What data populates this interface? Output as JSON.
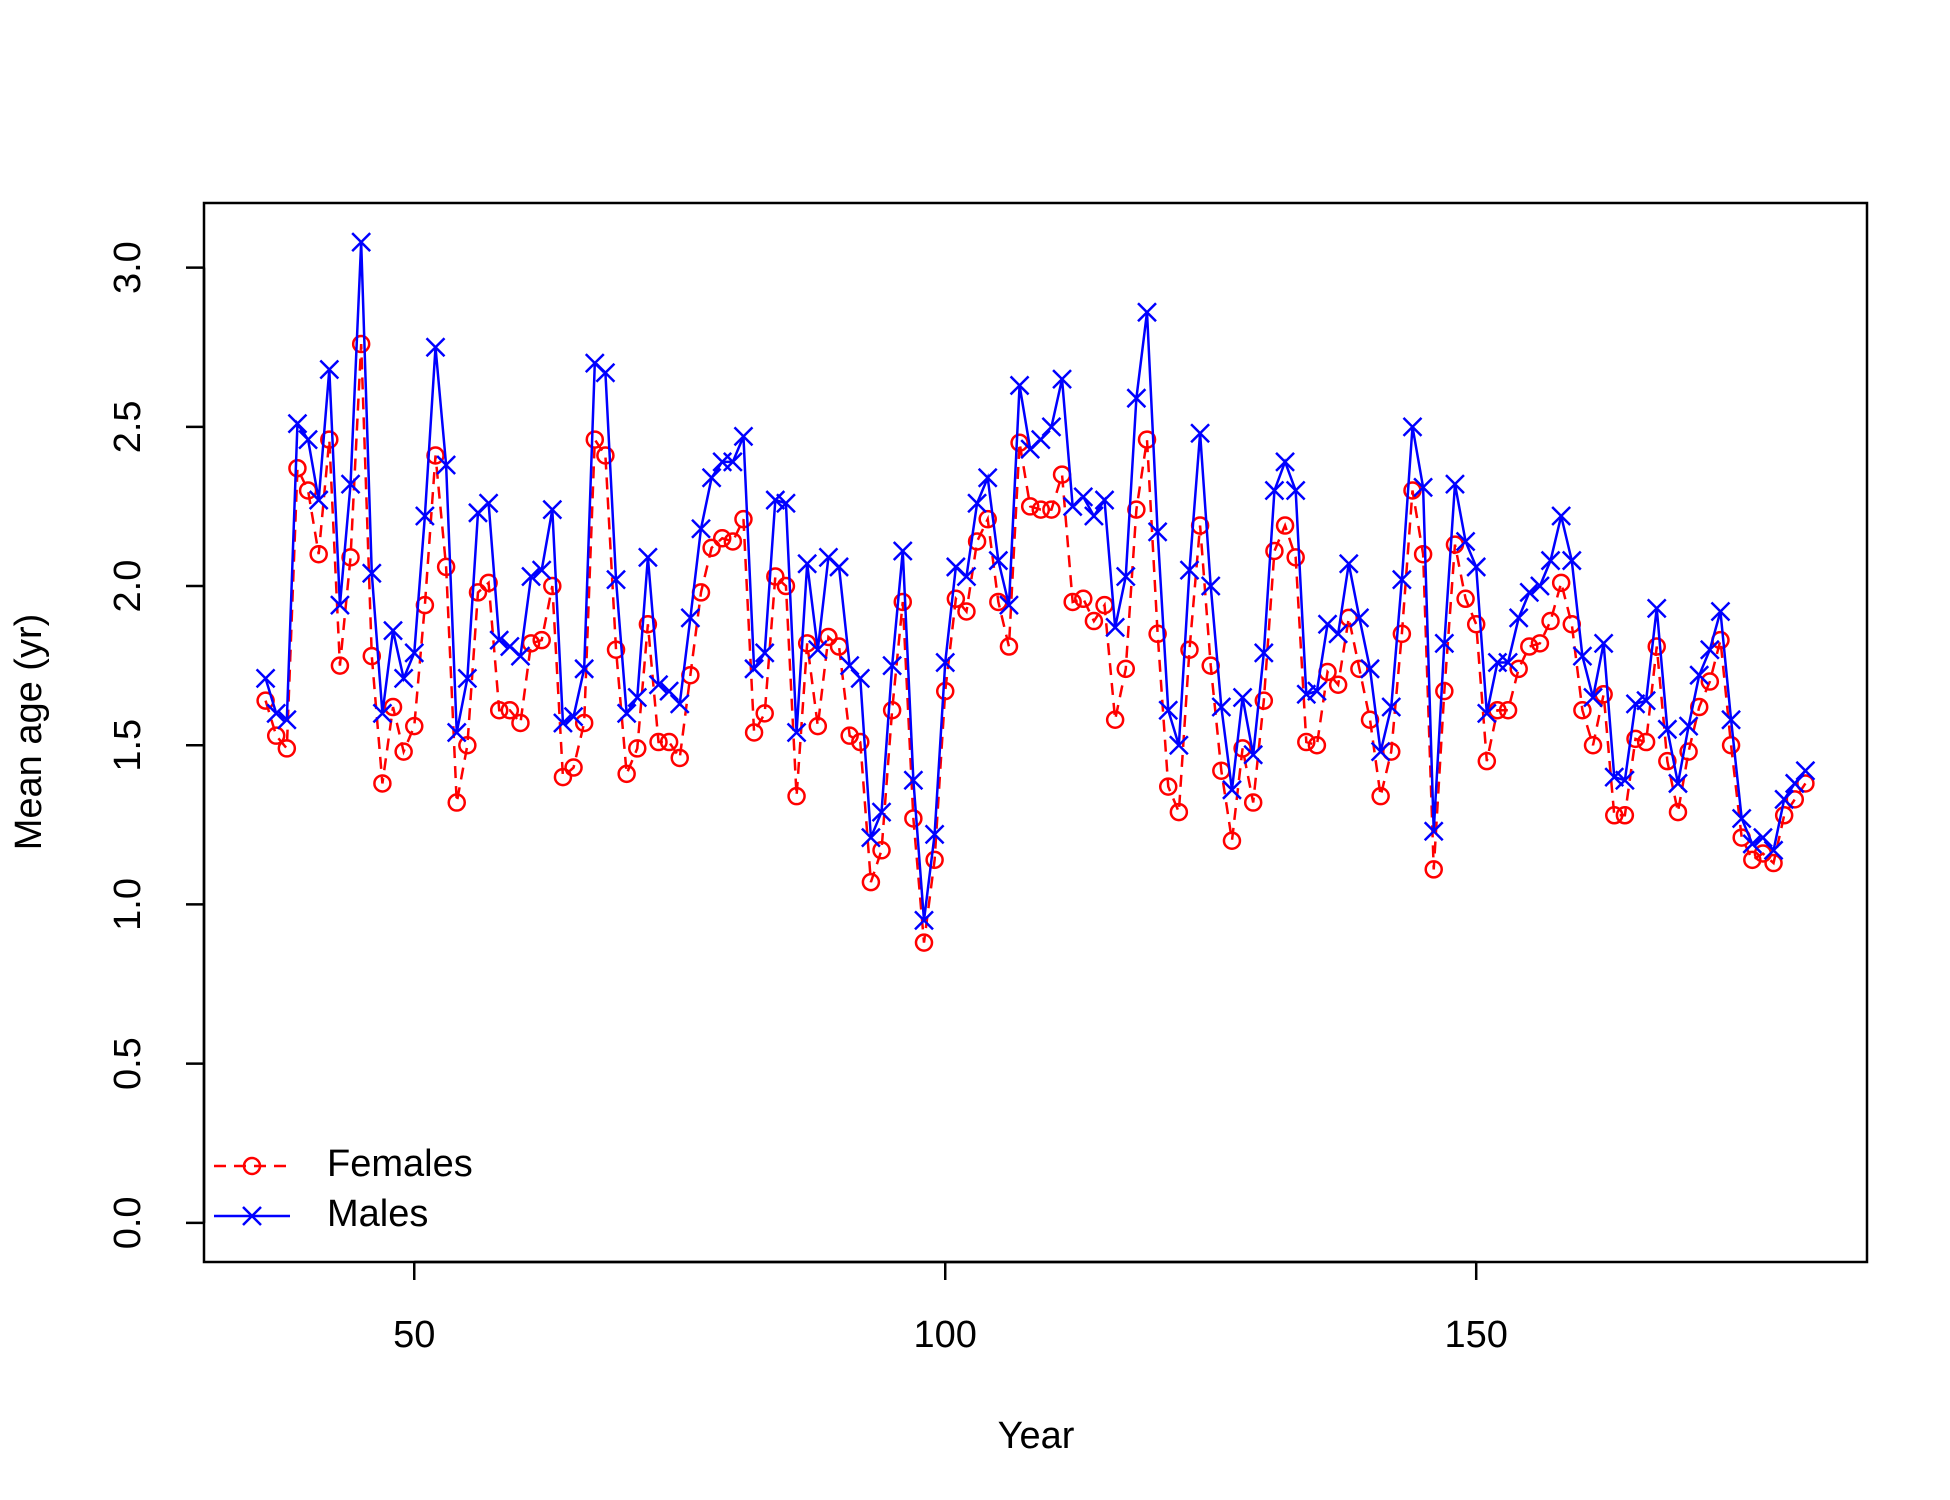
{
  "chart_data": {
    "type": "line",
    "xlabel": "Year",
    "ylabel": "Mean age (yr)",
    "x": [
      36,
      37,
      38,
      39,
      40,
      41,
      42,
      43,
      44,
      45,
      46,
      47,
      48,
      49,
      50,
      51,
      52,
      53,
      54,
      55,
      56,
      57,
      58,
      59,
      60,
      61,
      62,
      63,
      64,
      65,
      66,
      67,
      68,
      69,
      70,
      71,
      72,
      73,
      74,
      75,
      76,
      77,
      78,
      79,
      80,
      81,
      82,
      83,
      84,
      85,
      86,
      87,
      88,
      89,
      90,
      91,
      92,
      93,
      94,
      95,
      96,
      97,
      98,
      99,
      100,
      101,
      102,
      103,
      104,
      105,
      106,
      107,
      108,
      109,
      110,
      111,
      112,
      113,
      114,
      115,
      116,
      117,
      118,
      119,
      120,
      121,
      122,
      123,
      124,
      125,
      126,
      127,
      128,
      129,
      130,
      131,
      132,
      133,
      134,
      135,
      136,
      137,
      138,
      139,
      140,
      141,
      142,
      143,
      144,
      145,
      146,
      147,
      148,
      149,
      150,
      151,
      152,
      153,
      154,
      155,
      156,
      157,
      158,
      159,
      160,
      161,
      162,
      163,
      164,
      165,
      166,
      167,
      168,
      169,
      170,
      171,
      172,
      173,
      174,
      175,
      176,
      177,
      178,
      179,
      180,
      181
    ],
    "series": [
      {
        "name": "Females",
        "color": "#ff0000",
        "linestyle": "dashed",
        "marker": "circle",
        "values": [
          1.64,
          1.53,
          1.49,
          2.37,
          2.3,
          2.1,
          2.46,
          1.75,
          2.09,
          2.76,
          1.78,
          1.38,
          1.62,
          1.48,
          1.56,
          1.94,
          2.41,
          2.06,
          1.32,
          1.5,
          1.98,
          2.01,
          1.61,
          1.61,
          1.57,
          1.82,
          1.83,
          2.0,
          1.4,
          1.43,
          1.57,
          2.46,
          2.41,
          1.8,
          1.41,
          1.49,
          1.88,
          1.51,
          1.51,
          1.46,
          1.72,
          1.98,
          2.12,
          2.15,
          2.14,
          2.21,
          1.54,
          1.6,
          2.03,
          2.0,
          1.34,
          1.82,
          1.56,
          1.84,
          1.81,
          1.53,
          1.51,
          1.07,
          1.17,
          1.61,
          1.95,
          1.27,
          0.88,
          1.14,
          1.67,
          1.96,
          1.92,
          2.14,
          2.21,
          1.95,
          1.81,
          2.45,
          2.25,
          2.24,
          2.24,
          2.35,
          1.95,
          1.96,
          1.89,
          1.94,
          1.58,
          1.74,
          2.24,
          2.46,
          1.85,
          1.37,
          1.29,
          1.8,
          2.19,
          1.75,
          1.42,
          1.2,
          1.49,
          1.32,
          1.64,
          2.11,
          2.19,
          2.09,
          1.51,
          1.5,
          1.73,
          1.69,
          1.9,
          1.74,
          1.58,
          1.34,
          1.48,
          1.85,
          2.3,
          2.1,
          1.11,
          1.67,
          2.13,
          1.96,
          1.88,
          1.45,
          1.61,
          1.61,
          1.74,
          1.81,
          1.82,
          1.89,
          2.01,
          1.88,
          1.61,
          1.5,
          1.66,
          1.28,
          1.28,
          1.52,
          1.51,
          1.81,
          1.45,
          1.29,
          1.48,
          1.62,
          1.7,
          1.83,
          1.5,
          1.21,
          1.14,
          1.16,
          1.13,
          1.28,
          1.33,
          1.38
        ]
      },
      {
        "name": "Males",
        "color": "#0000ff",
        "linestyle": "solid",
        "marker": "cross",
        "values": [
          1.71,
          1.6,
          1.58,
          2.51,
          2.46,
          2.27,
          2.68,
          1.94,
          2.32,
          3.08,
          2.04,
          1.6,
          1.86,
          1.71,
          1.79,
          2.22,
          2.75,
          2.38,
          1.54,
          1.71,
          2.23,
          2.26,
          1.83,
          1.81,
          1.78,
          2.03,
          2.05,
          2.24,
          1.57,
          1.59,
          1.74,
          2.7,
          2.67,
          2.02,
          1.6,
          1.65,
          2.09,
          1.69,
          1.67,
          1.63,
          1.9,
          2.18,
          2.34,
          2.39,
          2.39,
          2.47,
          1.74,
          1.79,
          2.27,
          2.26,
          1.54,
          2.07,
          1.8,
          2.09,
          2.06,
          1.75,
          1.71,
          1.21,
          1.29,
          1.75,
          2.11,
          1.39,
          0.95,
          1.22,
          1.76,
          2.06,
          2.03,
          2.26,
          2.34,
          2.08,
          1.94,
          2.63,
          2.43,
          2.46,
          2.5,
          2.65,
          2.25,
          2.28,
          2.22,
          2.27,
          1.87,
          2.03,
          2.59,
          2.86,
          2.17,
          1.61,
          1.5,
          2.05,
          2.48,
          2.0,
          1.62,
          1.36,
          1.65,
          1.47,
          1.79,
          2.3,
          2.39,
          2.3,
          1.66,
          1.67,
          1.88,
          1.85,
          2.07,
          1.9,
          1.74,
          1.48,
          1.62,
          2.02,
          2.5,
          2.31,
          1.23,
          1.82,
          2.32,
          2.14,
          2.06,
          1.6,
          1.76,
          1.76,
          1.9,
          1.98,
          2.0,
          2.08,
          2.22,
          2.08,
          1.78,
          1.65,
          1.82,
          1.4,
          1.39,
          1.63,
          1.64,
          1.93,
          1.55,
          1.38,
          1.56,
          1.72,
          1.8,
          1.92,
          1.58,
          1.27,
          1.19,
          1.21,
          1.17,
          1.33,
          1.38,
          1.42
        ]
      }
    ],
    "xlim": [
      30.2,
      186.8
    ],
    "ylim": [
      -0.123,
      3.203
    ],
    "xticks": [
      50,
      100,
      150
    ],
    "yticks": [
      {
        "value": 0,
        "label": "0.0"
      },
      0.5,
      {
        "value": 1,
        "label": "1.0"
      },
      1.5,
      {
        "value": 2,
        "label": "2.0"
      },
      2.5,
      {
        "value": 3,
        "label": "3.0"
      }
    ],
    "legend": "bottomleft",
    "grid": false
  }
}
